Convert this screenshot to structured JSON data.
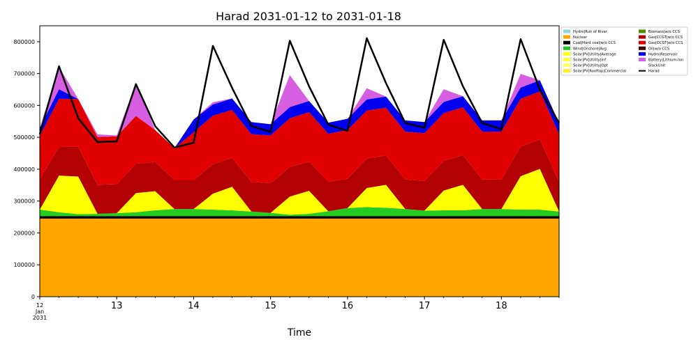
{
  "chart_data": {
    "type": "area",
    "title": "Harad 2031-01-12 to 2031-01-18",
    "xlabel": "Time",
    "ylabel": "",
    "x": [
      "2031-01-12 00:00",
      "2031-01-12 06:00",
      "2031-01-12 12:00",
      "2031-01-12 18:00",
      "2031-01-13 00:00",
      "2031-01-13 06:00",
      "2031-01-13 12:00",
      "2031-01-13 18:00",
      "2031-01-14 00:00",
      "2031-01-14 06:00",
      "2031-01-14 12:00",
      "2031-01-14 18:00",
      "2031-01-15 00:00",
      "2031-01-15 06:00",
      "2031-01-15 12:00",
      "2031-01-15 18:00",
      "2031-01-16 00:00",
      "2031-01-16 06:00",
      "2031-01-16 12:00",
      "2031-01-16 18:00",
      "2031-01-17 00:00",
      "2031-01-17 06:00",
      "2031-01-17 12:00",
      "2031-01-17 18:00",
      "2031-01-18 00:00",
      "2031-01-18 06:00",
      "2031-01-18 12:00",
      "2031-01-18 18:00"
    ],
    "xlim": [
      "2031-01-12 00:00",
      "2031-01-18 18:00"
    ],
    "x_ticks": [
      {
        "date": "2031-01-12 00:00",
        "label": "12\nJan\n2031"
      },
      {
        "date": "2031-01-13 00:00",
        "label": "13"
      },
      {
        "date": "2031-01-14 00:00",
        "label": "14"
      },
      {
        "date": "2031-01-15 00:00",
        "label": "15"
      },
      {
        "date": "2031-01-16 00:00",
        "label": "16"
      },
      {
        "date": "2031-01-17 00:00",
        "label": "17"
      },
      {
        "date": "2031-01-18 00:00",
        "label": "18"
      }
    ],
    "ylim": [
      0,
      850000
    ],
    "y_ticks": [
      0,
      100000,
      200000,
      300000,
      400000,
      500000,
      600000,
      700000,
      800000
    ],
    "grid": false,
    "legend_position": "right",
    "series": [
      {
        "name": "Hydro|Run of River",
        "color": "#8fd3e8",
        "values": [
          0,
          0,
          0,
          0,
          0,
          0,
          0,
          0,
          0,
          0,
          0,
          0,
          0,
          0,
          0,
          0,
          0,
          0,
          0,
          0,
          0,
          0,
          0,
          0,
          0,
          0,
          0,
          0
        ]
      },
      {
        "name": "Nuclear",
        "color": "#ffa500",
        "values": [
          245000,
          245000,
          245000,
          245000,
          245000,
          245000,
          245000,
          245000,
          245000,
          245000,
          245000,
          245000,
          245000,
          245000,
          245000,
          245000,
          245000,
          245000,
          245000,
          245000,
          245000,
          245000,
          245000,
          245000,
          245000,
          245000,
          245000,
          245000
        ]
      },
      {
        "name": "Coal|Hard coal|w/o CCS",
        "color": "#000000",
        "values": [
          8000,
          8000,
          8000,
          8000,
          8000,
          8000,
          8000,
          8000,
          8000,
          8000,
          8000,
          8000,
          8000,
          8000,
          8000,
          8000,
          8000,
          8000,
          8000,
          8000,
          8000,
          8000,
          8000,
          8000,
          8000,
          8000,
          8000,
          8000
        ]
      },
      {
        "name": "Wind|Onshore|Avg",
        "color": "#22cc22",
        "values": [
          20000,
          12000,
          6000,
          7000,
          9000,
          12000,
          18000,
          22000,
          22000,
          20000,
          18000,
          14000,
          10000,
          4000,
          7000,
          15000,
          25000,
          28000,
          26000,
          22000,
          17000,
          18000,
          18000,
          22000,
          22000,
          20000,
          20000,
          14000
        ]
      },
      {
        "name": "Solar|PV|Utility|Average",
        "color": "#ffff00",
        "values": [
          0,
          115000,
          118000,
          0,
          0,
          60000,
          60000,
          0,
          0,
          50000,
          74000,
          0,
          0,
          57000,
          72000,
          0,
          0,
          60000,
          72000,
          0,
          0,
          62000,
          80000,
          0,
          0,
          105000,
          128000,
          0
        ]
      },
      {
        "name": "Solar|PV|Utility|Inf",
        "color": "#ffff33",
        "values": [
          0,
          0,
          0,
          0,
          0,
          0,
          0,
          0,
          0,
          0,
          0,
          0,
          0,
          0,
          0,
          0,
          0,
          0,
          0,
          0,
          0,
          0,
          0,
          0,
          0,
          0,
          0,
          0
        ]
      },
      {
        "name": "Solar|PV|Utility|Opt",
        "color": "#ffff55",
        "values": [
          0,
          0,
          0,
          0,
          0,
          0,
          0,
          0,
          0,
          0,
          0,
          0,
          0,
          0,
          0,
          0,
          0,
          0,
          0,
          0,
          0,
          0,
          0,
          0,
          0,
          0,
          0,
          0
        ]
      },
      {
        "name": "Solar|PV|Rooftop|Commercial",
        "color": "#ffee22",
        "values": [
          0,
          0,
          0,
          0,
          0,
          0,
          0,
          0,
          0,
          0,
          0,
          0,
          0,
          0,
          0,
          0,
          0,
          0,
          0,
          0,
          0,
          0,
          0,
          0,
          0,
          0,
          0,
          0
        ]
      },
      {
        "name": "Biomass|w/o CCS",
        "color": "#4e8c00",
        "values": [
          0,
          0,
          0,
          0,
          0,
          0,
          0,
          0,
          0,
          0,
          0,
          0,
          0,
          0,
          0,
          0,
          0,
          0,
          0,
          0,
          0,
          0,
          0,
          0,
          0,
          0,
          0,
          0
        ]
      },
      {
        "name": "Gas|CCGT|w/o CCS",
        "color": "#b30000",
        "values": [
          95000,
          91000,
          93000,
          91000,
          91000,
          92000,
          92000,
          91000,
          91000,
          93000,
          91000,
          93000,
          93000,
          93000,
          92000,
          93000,
          92000,
          93000,
          92000,
          93000,
          93000,
          93000,
          93000,
          93000,
          93000,
          93000,
          93000,
          93000
        ]
      },
      {
        "name": "Gas|OCGT|w/o CCS",
        "color": "#e00000",
        "values": [
          137000,
          150000,
          150000,
          150000,
          150000,
          150000,
          100000,
          100000,
          150000,
          152000,
          150000,
          150000,
          150000,
          153000,
          155000,
          150000,
          153000,
          150000,
          150000,
          150000,
          150000,
          150000,
          150000,
          150000,
          150000,
          150000,
          150000,
          150000
        ]
      },
      {
        "name": "Oil|w/o CCS",
        "color": "#400000",
        "values": [
          0,
          0,
          0,
          0,
          0,
          0,
          0,
          0,
          0,
          0,
          0,
          0,
          0,
          0,
          0,
          0,
          0,
          0,
          0,
          0,
          0,
          0,
          0,
          0,
          0,
          0,
          0,
          0
        ]
      },
      {
        "name": "Hydro|Reservoir",
        "color": "#0000ee",
        "values": [
          25000,
          30000,
          0,
          0,
          0,
          0,
          0,
          0,
          40000,
          35000,
          36000,
          38000,
          35000,
          35000,
          35000,
          35000,
          35000,
          35000,
          35000,
          35000,
          35000,
          35000,
          35000,
          35000,
          35000,
          35000,
          35000,
          35000
        ]
      },
      {
        "name": "Battery|Lithium-Ion",
        "color": "#d65ee0",
        "values": [
          0,
          70000,
          0,
          8000,
          3000,
          105000,
          0,
          0,
          0,
          7000,
          0,
          0,
          0,
          100000,
          0,
          0,
          0,
          35000,
          0,
          0,
          0,
          40000,
          0,
          0,
          0,
          43000,
          0,
          0
        ]
      },
      {
        "name": "SlackUnit",
        "color": "#ffffff",
        "values": [
          0,
          0,
          0,
          0,
          0,
          0,
          0,
          0,
          0,
          0,
          0,
          0,
          0,
          0,
          0,
          0,
          0,
          0,
          0,
          0,
          0,
          0,
          0,
          0,
          0,
          0,
          0,
          0
        ]
      }
    ],
    "demand_series": {
      "name": "Harad",
      "color": "#000000",
      "values": [
        510000,
        723000,
        560000,
        485000,
        487000,
        667000,
        535000,
        468000,
        483000,
        787000,
        655000,
        535000,
        517000,
        803000,
        660000,
        540000,
        520000,
        811000,
        670000,
        545000,
        530000,
        806000,
        660000,
        545000,
        525000,
        808000,
        650000,
        545000
      ]
    }
  }
}
